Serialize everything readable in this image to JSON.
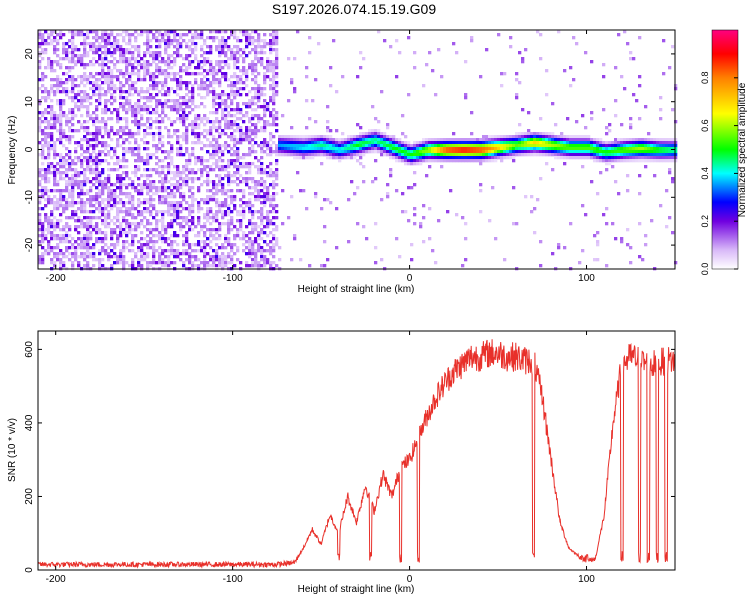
{
  "title": "S197.2026.074.15.19.G09",
  "colors": {
    "snr_line": "#e8302a",
    "axis": "#000000",
    "background": "#ffffff"
  },
  "chart_data": [
    {
      "type": "heatmap",
      "name": "spectrogram",
      "xlabel": "Height of straight line (km)",
      "ylabel": "Frequency (Hz)",
      "xlim": [
        -210,
        150
      ],
      "ylim": [
        -25,
        25
      ],
      "xticks": [
        -200,
        -100,
        0,
        100
      ],
      "xtick_labels": [
        "-200",
        "-100",
        "0",
        "100"
      ],
      "yticks": [
        -20,
        -10,
        0,
        10,
        20
      ],
      "ytick_labels": [
        "-20",
        "-10",
        "0",
        "10",
        "20"
      ],
      "noise_region_x": [
        -210,
        -75
      ],
      "signal_track": {
        "x": [
          -75,
          -60,
          -50,
          -40,
          -30,
          -20,
          -10,
          0,
          10,
          20,
          30,
          40,
          50,
          60,
          70,
          80,
          90,
          100,
          110,
          120,
          130,
          140,
          150
        ],
        "freq": [
          1,
          0.5,
          1,
          0,
          1,
          2,
          0.5,
          -1,
          0,
          0,
          0,
          0,
          0.5,
          1,
          1.5,
          1,
          0.5,
          0.5,
          -0.5,
          0,
          0.3,
          0,
          0
        ],
        "peak_amplitude": [
          0.35,
          0.4,
          0.45,
          0.4,
          0.5,
          0.45,
          0.5,
          0.5,
          0.6,
          0.85,
          0.9,
          0.85,
          0.7,
          0.55,
          0.7,
          0.6,
          0.55,
          0.55,
          0.5,
          0.55,
          0.6,
          0.5,
          0.45
        ]
      },
      "colorbar": {
        "label": "Normalized spectral amplitude",
        "range": [
          0,
          1
        ],
        "ticks": [
          0,
          0.2,
          0.4,
          0.6,
          0.8
        ],
        "tick_labels": [
          "0.0",
          "0.2",
          "0.4",
          "0.6",
          "0.8"
        ]
      }
    },
    {
      "type": "line",
      "name": "snr",
      "xlabel": "Height of straight line (km)",
      "ylabel": "SNR (10 * v/v)",
      "xlim": [
        -210,
        150
      ],
      "ylim": [
        0,
        650
      ],
      "xticks": [
        -200,
        -100,
        0,
        100
      ],
      "xtick_labels": [
        "-200",
        "-100",
        "0",
        "100"
      ],
      "yticks": [
        0,
        200,
        400,
        600
      ],
      "ytick_labels": [
        "0",
        "200",
        "400",
        "600"
      ],
      "series": [
        {
          "name": "SNR",
          "x": [
            -210,
            -180,
            -150,
            -120,
            -90,
            -75,
            -65,
            -60,
            -55,
            -50,
            -45,
            -40,
            -35,
            -30,
            -25,
            -20,
            -15,
            -10,
            -5,
            0,
            5,
            10,
            15,
            20,
            25,
            30,
            35,
            40,
            45,
            50,
            55,
            60,
            65,
            70,
            75,
            80,
            85,
            90,
            95,
            100,
            105,
            110,
            115,
            120,
            125,
            130,
            135,
            140,
            145,
            150
          ],
          "y": [
            15,
            15,
            15,
            15,
            15,
            15,
            20,
            60,
            110,
            70,
            150,
            100,
            200,
            130,
            230,
            160,
            260,
            200,
            280,
            300,
            360,
            420,
            470,
            510,
            540,
            560,
            580,
            580,
            590,
            590,
            580,
            580,
            570,
            570,
            470,
            300,
            130,
            60,
            40,
            25,
            30,
            150,
            400,
            560,
            580,
            570,
            560,
            560,
            570,
            570
          ]
        }
      ],
      "dropouts_x": [
        -40,
        -22,
        -5,
        5,
        70,
        100,
        120,
        130,
        135,
        140,
        145
      ]
    }
  ]
}
